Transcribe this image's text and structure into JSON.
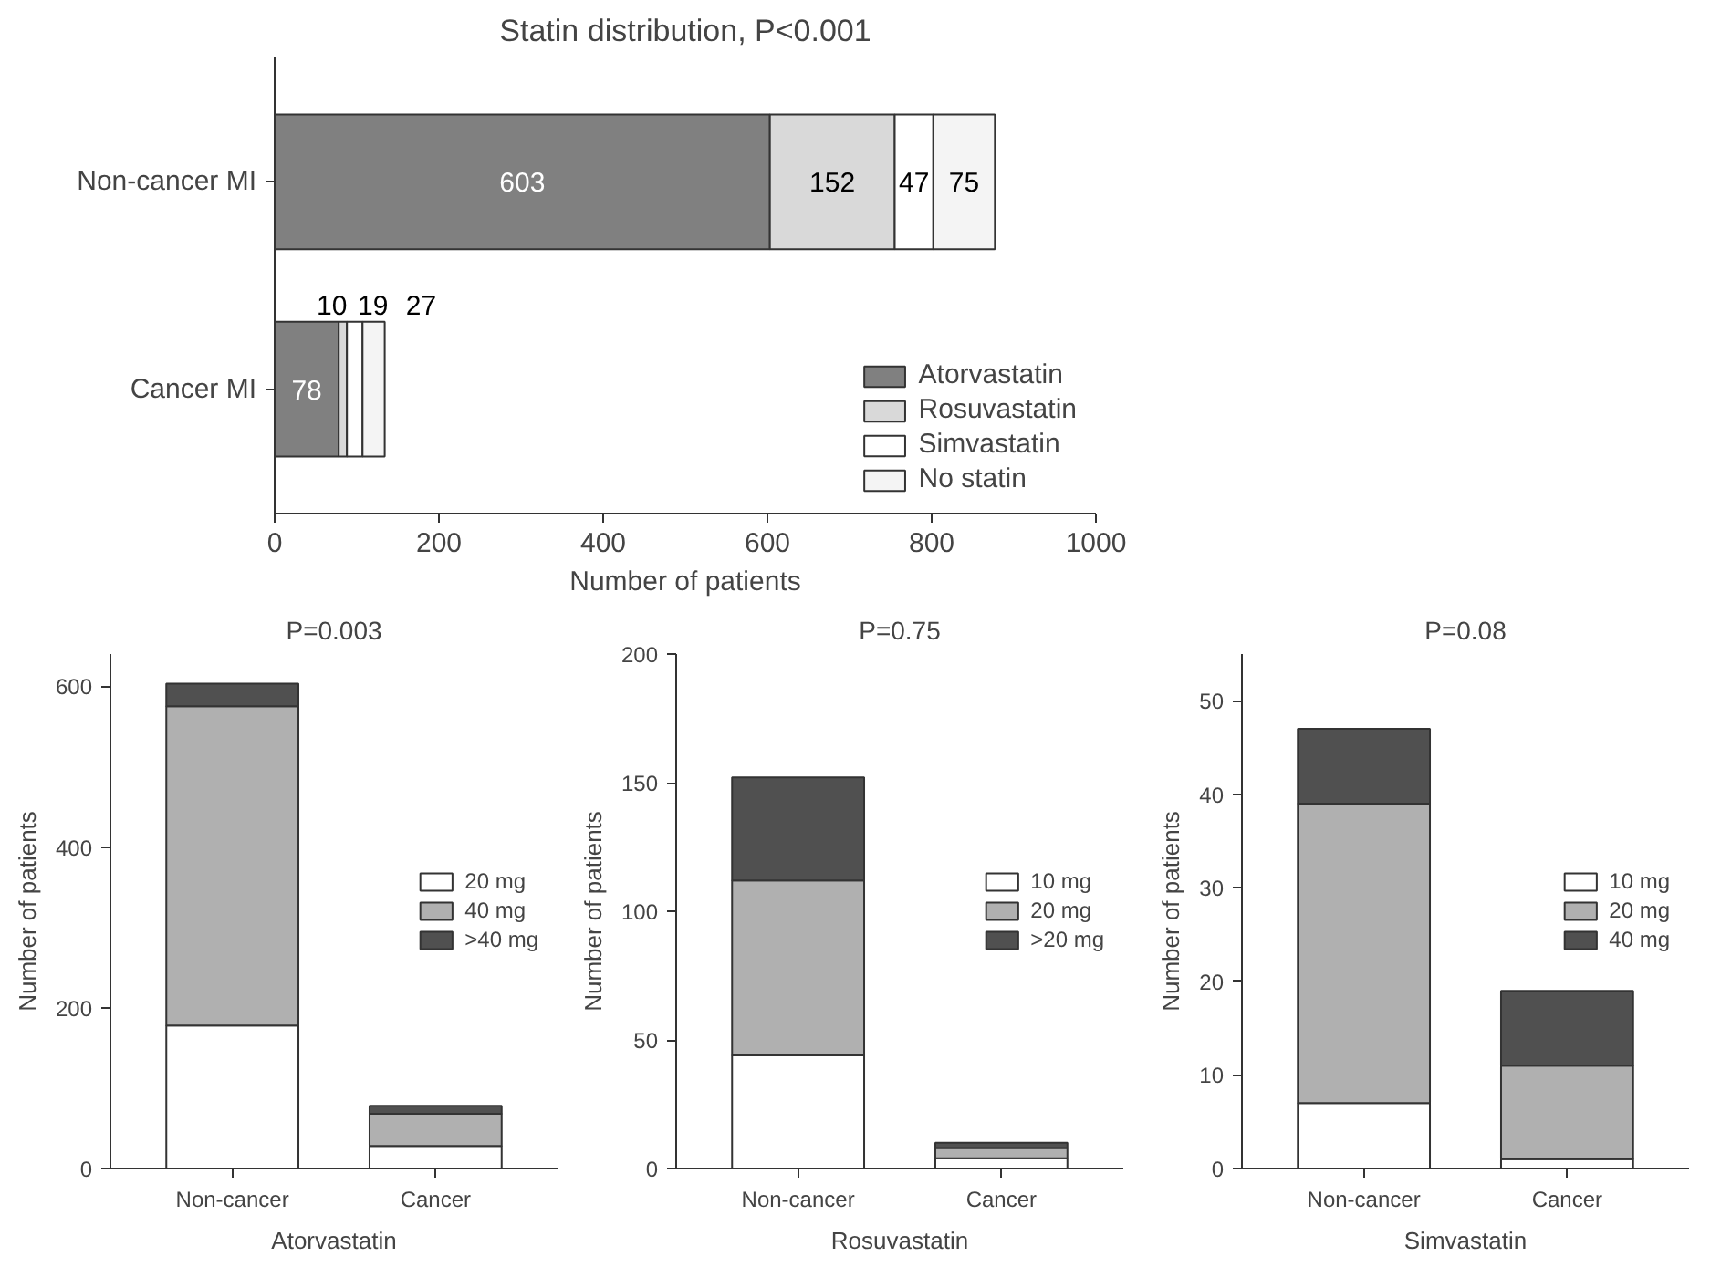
{
  "chart_data": [
    {
      "type": "bar",
      "title": "Statin distribution, P<0.001",
      "xlabel": "Number of patients",
      "orientation": "horizontal",
      "stacked": true,
      "categories": [
        "Non-cancer MI",
        "Cancer MI"
      ],
      "xlim": [
        0,
        1000
      ],
      "xticks": [
        0,
        200,
        400,
        600,
        800,
        1000
      ],
      "grid": false,
      "legend": "bottom right",
      "data_labels": true,
      "series": [
        {
          "name": "Atorvastatin",
          "color": "#808080",
          "values": [
            603,
            78
          ]
        },
        {
          "name": "Rosuvastatin",
          "color": "#d9d9d9",
          "values": [
            152,
            10
          ]
        },
        {
          "name": "Simvastatin",
          "color": "#ffffff",
          "values": [
            47,
            19
          ]
        },
        {
          "name": "No statin",
          "color": "#f4f4f4",
          "values": [
            75,
            27
          ]
        }
      ]
    },
    {
      "type": "bar",
      "title": "P=0.003",
      "xlabel": "Atorvastatin",
      "ylabel": "Number of patients",
      "stacked": true,
      "categories": [
        "Non-cancer",
        "Cancer"
      ],
      "ylim": [
        0,
        640
      ],
      "yticks": [
        0,
        200,
        400,
        600
      ],
      "grid": false,
      "legend": "right",
      "series": [
        {
          "name": "20 mg",
          "color": "#ffffff",
          "values": [
            178,
            28
          ]
        },
        {
          "name": "40 mg",
          "color": "#b0b0b0",
          "values": [
            397,
            40
          ]
        },
        {
          "name": ">40 mg",
          "color": "#505050",
          "values": [
            28,
            10
          ]
        }
      ]
    },
    {
      "type": "bar",
      "title": "P=0.75",
      "xlabel": "Rosuvastatin",
      "ylabel": "Number of patients",
      "stacked": true,
      "categories": [
        "Non-cancer",
        "Cancer"
      ],
      "ylim": [
        0,
        200
      ],
      "yticks": [
        0,
        50,
        100,
        150,
        200
      ],
      "grid": false,
      "legend": "right",
      "series": [
        {
          "name": "10 mg",
          "color": "#ffffff",
          "values": [
            44,
            4
          ]
        },
        {
          "name": "20 mg",
          "color": "#b0b0b0",
          "values": [
            68,
            4
          ]
        },
        {
          "name": ">20 mg",
          "color": "#505050",
          "values": [
            40,
            2
          ]
        }
      ]
    },
    {
      "type": "bar",
      "title": "P=0.08",
      "xlabel": "Simvastatin",
      "ylabel": "Number of patients",
      "stacked": true,
      "categories": [
        "Non-cancer",
        "Cancer"
      ],
      "ylim": [
        0,
        55
      ],
      "yticks": [
        0,
        10,
        20,
        30,
        40,
        50
      ],
      "grid": false,
      "legend": "right",
      "series": [
        {
          "name": "10 mg",
          "color": "#ffffff",
          "values": [
            7,
            1
          ]
        },
        {
          "name": "20 mg",
          "color": "#b0b0b0",
          "values": [
            32,
            10
          ]
        },
        {
          "name": "40 mg",
          "color": "#505050",
          "values": [
            8,
            8
          ]
        }
      ]
    }
  ]
}
